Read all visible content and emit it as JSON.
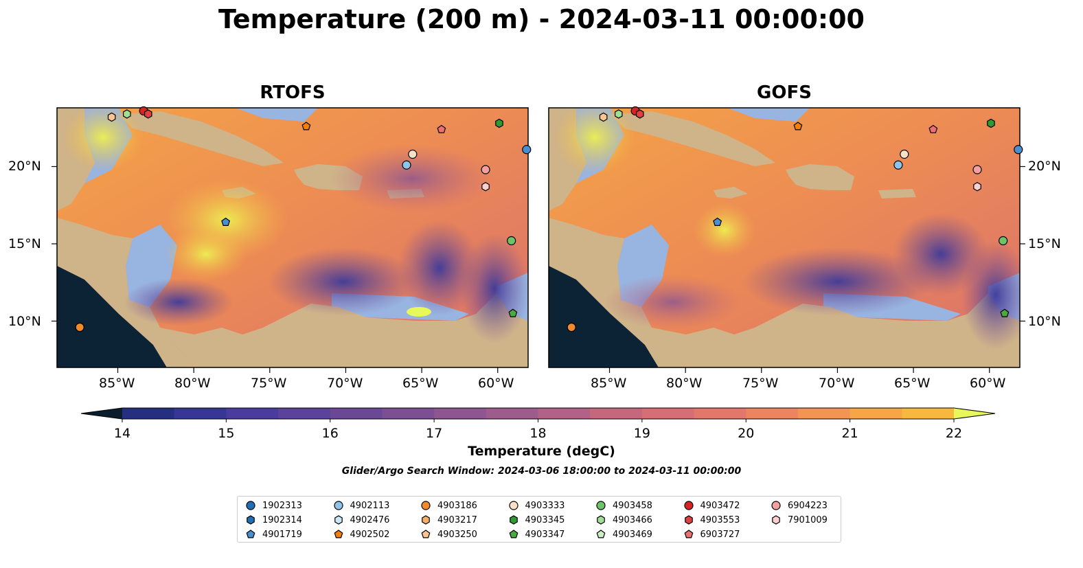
{
  "title": "Temperature (200 m) - 2024-03-11 00:00:00",
  "maps": [
    {
      "title": "RTOFS"
    },
    {
      "title": "GOFS"
    }
  ],
  "axes": {
    "lon_ticks": [
      "85°W",
      "80°W",
      "75°W",
      "70°W",
      "65°W",
      "60°W"
    ],
    "lat_ticks": [
      "20°N",
      "15°N",
      "10°N"
    ]
  },
  "colorbar": {
    "label": "Temperature (degC)",
    "ticks": [
      "14",
      "15",
      "16",
      "17",
      "18",
      "19",
      "20",
      "21",
      "22"
    ],
    "min": 14,
    "max": 22,
    "step": 0.5,
    "colors": [
      "#0c2440",
      "#152a5e",
      "#24307f",
      "#363795",
      "#4a3c9c",
      "#5b429a",
      "#6b4895",
      "#7c4f92",
      "#8d5690",
      "#9e5c8c",
      "#b26286",
      "#c5687e",
      "#d56e75",
      "#e2776b",
      "#ec845f",
      "#f29453",
      "#f6a647",
      "#f7b83f",
      "#f4cb41",
      "#ece54e",
      "#e3f75a"
    ],
    "extend_low": "#0c1e2e",
    "extend_high": "#e8f858"
  },
  "search_window": "Glider/Argo Search Window: 2024-03-06 18:00:00 to 2024-03-11 00:00:00",
  "colors": {
    "land": "#cfb48a",
    "shelf": "#98b4e0",
    "deep_pacific": "#0b2334",
    "warm": "#f0894a",
    "hot": "#e6f454"
  },
  "legend": [
    {
      "id": "1902313",
      "marker": "circle",
      "color": "#1f6fb4"
    },
    {
      "id": "1902314",
      "marker": "hexagon",
      "color": "#1f6fb4"
    },
    {
      "id": "4901719",
      "marker": "pentagon",
      "color": "#4a90d0"
    },
    {
      "id": "4902113",
      "marker": "circle",
      "color": "#8ec3ea"
    },
    {
      "id": "4902476",
      "marker": "hexagon",
      "color": "#cbe6f7"
    },
    {
      "id": "4902502",
      "marker": "pentagon",
      "color": "#f07f10"
    },
    {
      "id": "4903186",
      "marker": "circle",
      "color": "#f08a2a"
    },
    {
      "id": "4903217",
      "marker": "hexagon",
      "color": "#f6b06a"
    },
    {
      "id": "4903250",
      "marker": "pentagon",
      "color": "#fbc591"
    },
    {
      "id": "4903333",
      "marker": "circle",
      "color": "#fbe0c8"
    },
    {
      "id": "4903345",
      "marker": "hexagon",
      "color": "#2f9a2f"
    },
    {
      "id": "4903347",
      "marker": "pentagon",
      "color": "#49ac3e"
    },
    {
      "id": "4903458",
      "marker": "circle",
      "color": "#6cc466"
    },
    {
      "id": "4903466",
      "marker": "hexagon",
      "color": "#a2dd98"
    },
    {
      "id": "4903469",
      "marker": "pentagon",
      "color": "#cdeec3"
    },
    {
      "id": "4903472",
      "marker": "circle",
      "color": "#d42424"
    },
    {
      "id": "4903553",
      "marker": "hexagon",
      "color": "#e04040"
    },
    {
      "id": "6903727",
      "marker": "pentagon",
      "color": "#ec7070"
    },
    {
      "id": "6904223",
      "marker": "circle",
      "color": "#f4a0a0"
    },
    {
      "id": "7901009",
      "marker": "hexagon",
      "color": "#f9cfcf"
    }
  ],
  "platforms": [
    {
      "lon": -85.4,
      "lat": 23.2,
      "color": "#fbc591",
      "marker": "hexagon"
    },
    {
      "lon": -84.4,
      "lat": 23.4,
      "color": "#a2dd98",
      "marker": "hexagon"
    },
    {
      "lon": -83.3,
      "lat": 23.6,
      "color": "#d42424",
      "marker": "circle"
    },
    {
      "lon": -83.0,
      "lat": 23.4,
      "color": "#e04040",
      "marker": "hexagon"
    },
    {
      "lon": -72.6,
      "lat": 22.6,
      "color": "#f07f10",
      "marker": "pentagon"
    },
    {
      "lon": -63.7,
      "lat": 22.4,
      "color": "#ec7070",
      "marker": "pentagon"
    },
    {
      "lon": -59.9,
      "lat": 22.8,
      "color": "#2f9a2f",
      "marker": "hexagon"
    },
    {
      "lon": -58.1,
      "lat": 21.1,
      "color": "#4a90d0",
      "marker": "circle"
    },
    {
      "lon": -65.6,
      "lat": 20.8,
      "color": "#fbe0c8",
      "marker": "circle"
    },
    {
      "lon": -66.0,
      "lat": 20.1,
      "color": "#8ec3ea",
      "marker": "circle"
    },
    {
      "lon": -60.8,
      "lat": 19.8,
      "color": "#f4a0a0",
      "marker": "circle"
    },
    {
      "lon": -60.8,
      "lat": 18.7,
      "color": "#f9cfcf",
      "marker": "hexagon"
    },
    {
      "lon": -77.9,
      "lat": 16.4,
      "color": "#4a90d0",
      "marker": "pentagon"
    },
    {
      "lon": -59.1,
      "lat": 15.2,
      "color": "#6cc466",
      "marker": "circle"
    },
    {
      "lon": -59.0,
      "lat": 10.5,
      "color": "#49ac3e",
      "marker": "pentagon"
    },
    {
      "lon": -87.5,
      "lat": 9.6,
      "color": "#f08a2a",
      "marker": "circle"
    }
  ]
}
